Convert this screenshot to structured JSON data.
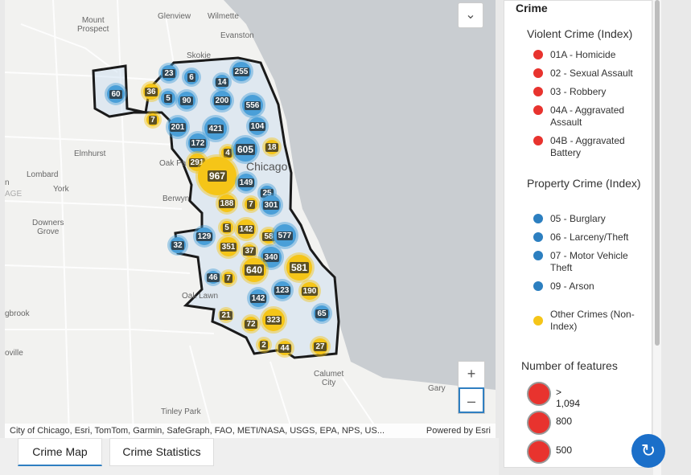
{
  "map": {
    "places": {
      "glenview": "Glenview",
      "wilmette": "Wilmette",
      "mount_prospect": "Mount\nProspect",
      "evanston": "Evanston",
      "skokie": "Skokie",
      "elmhurst": "Elmhurst",
      "lombard": "Lombard",
      "york": "York",
      "oak_park": "Oak Pa",
      "berwyn": "Berwyn",
      "downers_grove": "Downers\nGrove",
      "oak_lawn": "Oak Lawn",
      "calumet_city": "Calumet\nCity",
      "gary": "Gary",
      "tinley_park": "Tinley Park",
      "gbrook": "gbrook",
      "oville": "oville",
      "age": "AGE",
      "n": "n",
      "chicago": "Chicago"
    },
    "clusters": [
      {
        "v": "60",
        "c": "blue"
      },
      {
        "v": "36",
        "c": "yellow"
      },
      {
        "v": "23",
        "c": "blue"
      },
      {
        "v": "6",
        "c": "blue"
      },
      {
        "v": "14",
        "c": "blue"
      },
      {
        "v": "255",
        "c": "blue"
      },
      {
        "v": "5",
        "c": "blue"
      },
      {
        "v": "90",
        "c": "blue"
      },
      {
        "v": "200",
        "c": "blue"
      },
      {
        "v": "556",
        "c": "blue"
      },
      {
        "v": "7",
        "c": "yellow"
      },
      {
        "v": "201",
        "c": "blue"
      },
      {
        "v": "421",
        "c": "blue"
      },
      {
        "v": "104",
        "c": "blue"
      },
      {
        "v": "172",
        "c": "blue"
      },
      {
        "v": "4",
        "c": "yellow"
      },
      {
        "v": "605",
        "c": "blue"
      },
      {
        "v": "18",
        "c": "yellow"
      },
      {
        "v": "291",
        "c": "yellow"
      },
      {
        "v": "967",
        "c": "yellow"
      },
      {
        "v": "149",
        "c": "blue"
      },
      {
        "v": "25",
        "c": "blue"
      },
      {
        "v": "188",
        "c": "yellow"
      },
      {
        "v": "7",
        "c": "yellow"
      },
      {
        "v": "301",
        "c": "blue"
      },
      {
        "v": "5",
        "c": "yellow"
      },
      {
        "v": "142",
        "c": "yellow"
      },
      {
        "v": "58",
        "c": "yellow"
      },
      {
        "v": "577",
        "c": "blue"
      },
      {
        "v": "32",
        "c": "blue"
      },
      {
        "v": "129",
        "c": "blue"
      },
      {
        "v": "351",
        "c": "yellow"
      },
      {
        "v": "37",
        "c": "yellow"
      },
      {
        "v": "340",
        "c": "blue"
      },
      {
        "v": "581",
        "c": "yellow"
      },
      {
        "v": "640",
        "c": "yellow"
      },
      {
        "v": "46",
        "c": "blue"
      },
      {
        "v": "7",
        "c": "yellow"
      },
      {
        "v": "123",
        "c": "blue"
      },
      {
        "v": "190",
        "c": "yellow"
      },
      {
        "v": "142",
        "c": "blue"
      },
      {
        "v": "65",
        "c": "blue"
      },
      {
        "v": "21",
        "c": "yellow"
      },
      {
        "v": "72",
        "c": "yellow"
      },
      {
        "v": "323",
        "c": "yellow"
      },
      {
        "v": "2",
        "c": "yellow"
      },
      {
        "v": "44",
        "c": "yellow"
      },
      {
        "v": "27",
        "c": "yellow"
      }
    ],
    "attribution": "City of Chicago, Esri, TomTom, Garmin, SafeGraph, FAO, METI/NASA, USGS, EPA, NPS, US...",
    "powered_by": "Powered by Esri",
    "zoom_in": "+",
    "zoom_out": "–",
    "collapse_icon": "chevron-double-down-icon",
    "colors": {
      "blue": "#4a9fd8",
      "yellow": "#f5c518",
      "boundary": "#1a1a1a",
      "lake": "#c9cdd1"
    }
  },
  "tabs": {
    "map": "Crime Map",
    "stats": "Crime Statistics"
  },
  "legend": {
    "title": "Crime",
    "violent_heading": "Violent Crime (Index)",
    "violent": [
      {
        "label": "01A - Homicide",
        "icon": "homicide-icon"
      },
      {
        "label": "02 - Sexual Assault",
        "icon": "sexual-assault-icon"
      },
      {
        "label": "03 - Robbery",
        "icon": "robbery-icon"
      },
      {
        "label": "04A - Aggravated Assault",
        "icon": "aggravated-assault-icon"
      },
      {
        "label": "04B - Aggravated Battery",
        "icon": "aggravated-battery-icon"
      }
    ],
    "property_heading": "Property Crime (Index)",
    "property": [
      {
        "label": "05 - Burglary",
        "icon": "burglary-icon"
      },
      {
        "label": "06 - Larceny/Theft",
        "icon": "larceny-icon"
      },
      {
        "label": "07 - Motor Vehicle Theft",
        "icon": "car-icon"
      },
      {
        "label": "09 - Arson",
        "icon": "fire-icon"
      }
    ],
    "other_label": "Other Crimes (Non-Index)",
    "features_heading": "Number of features",
    "features": [
      ">  1,094",
      "800",
      "500"
    ]
  },
  "refresh_icon": "refresh-icon"
}
